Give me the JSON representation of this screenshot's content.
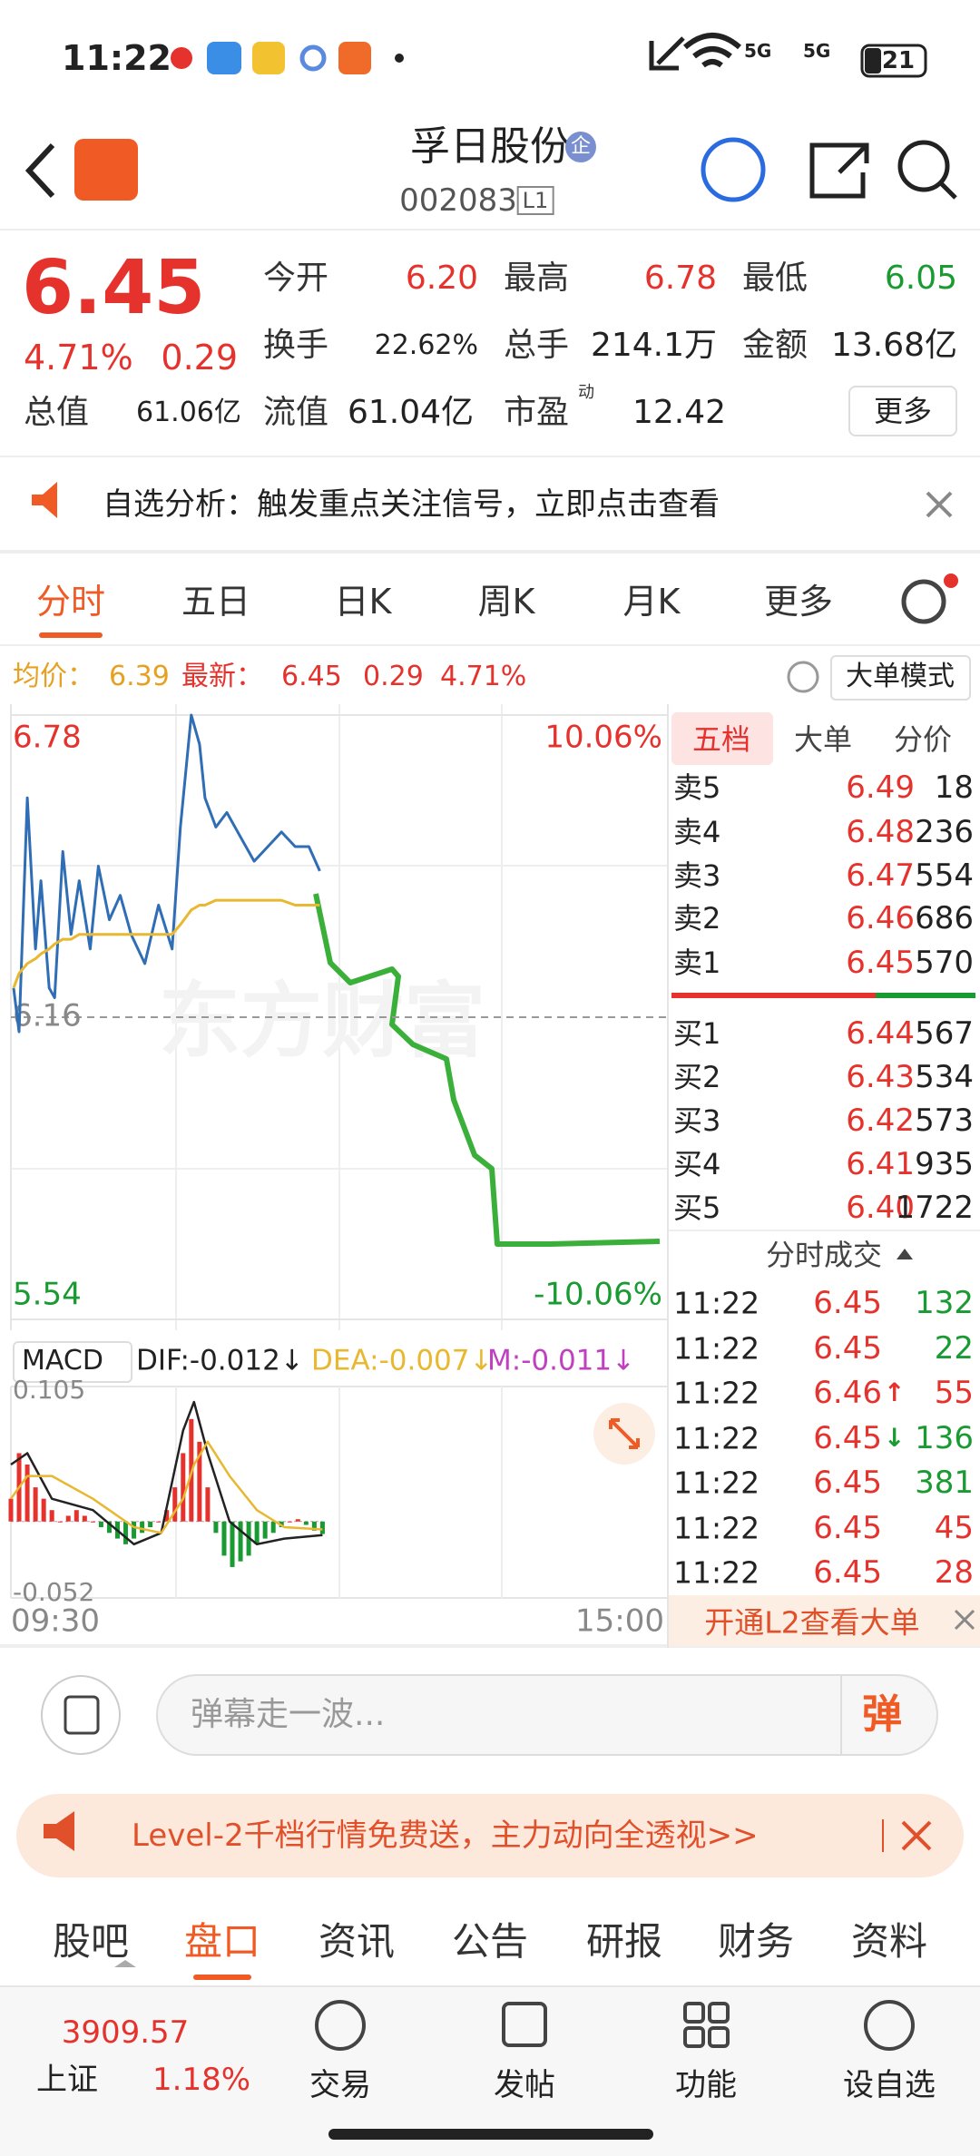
{
  "status_bar": {
    "time": "11:22",
    "battery": "21",
    "network": [
      "5G",
      "5G"
    ]
  },
  "header": {
    "title": "孚日股份",
    "badge": "企",
    "code": "002083",
    "level": "L1"
  },
  "quote": {
    "price": "6.45",
    "change_pct": "4.71%",
    "change": "0.29",
    "fields": [
      {
        "label": "今开",
        "value": "6.20"
      },
      {
        "label": "最高",
        "value": "6.78"
      },
      {
        "label": "最低",
        "value": "6.05"
      },
      {
        "label": "换手",
        "value": "22.62%"
      },
      {
        "label": "总手",
        "value": "214.1万"
      },
      {
        "label": "金额",
        "value": "13.68亿"
      },
      {
        "label": "总值",
        "value": "61.06亿"
      },
      {
        "label": "流值",
        "value": "61.04亿"
      },
      {
        "label": "市盈",
        "sup": "动",
        "value": "12.42"
      }
    ],
    "more": "更多"
  },
  "notice": {
    "text": "自选分析：触发重点关注信号，立即点击查看"
  },
  "tabs": [
    "分时",
    "五日",
    "日K",
    "周K",
    "月K",
    "更多"
  ],
  "info": {
    "avg_label": "均价：",
    "avg": "6.39",
    "last_label": "最新：",
    "last": "6.45",
    "change": "0.29",
    "change_pct": "4.71%",
    "mode": "大单模式"
  },
  "watermark": "东方财富",
  "macd_header": {
    "name": "MACD",
    "dif": "DIF:-0.012↓",
    "dea": "DEA:-0.007↓",
    "m": "M:-0.011↓"
  },
  "chart_data": [
    {
      "type": "line",
      "x": [
        1,
        3,
        6,
        9,
        11,
        14,
        16,
        19,
        22,
        25,
        29,
        32,
        36,
        40,
        44,
        49,
        54,
        59,
        62,
        66,
        69,
        71,
        75,
        79,
        84,
        89,
        94,
        99,
        104,
        109,
        113
      ],
      "xlim": [
        0,
        240
      ],
      "xticks": [
        {
          "value": 0,
          "label": "09:30"
        },
        {
          "value": 240,
          "label": "15:00"
        }
      ],
      "ylim": [
        5.54,
        6.78
      ],
      "yticks": [
        5.54,
        6.16,
        6.78
      ],
      "y2lim": [
        -10.06,
        10.06
      ],
      "y2ticks": [
        {
          "value": -10.06,
          "label": "-10.06%"
        },
        {
          "value": 10.06,
          "label": "10.06%"
        }
      ],
      "series": [
        {
          "color": "#2f6db5",
          "values": [
            6.22,
            6.13,
            6.61,
            6.3,
            6.44,
            6.22,
            6.2,
            6.5,
            6.33,
            6.44,
            6.3,
            6.47,
            6.36,
            6.41,
            6.33,
            6.27,
            6.39,
            6.3,
            6.55,
            6.78,
            6.72,
            6.61,
            6.55,
            6.58,
            6.53,
            6.48,
            6.51,
            6.54,
            6.51,
            6.51,
            6.46
          ]
        },
        {
          "color": "#e8b830",
          "values": [
            6.22,
            6.25,
            6.27,
            6.28,
            6.29,
            6.3,
            6.31,
            6.32,
            6.32,
            6.33,
            6.33,
            6.33,
            6.33,
            6.33,
            6.33,
            6.33,
            6.33,
            6.33,
            6.35,
            6.38,
            6.39,
            6.39,
            6.4,
            6.4,
            6.4,
            6.4,
            6.4,
            6.4,
            6.39,
            6.39,
            6.39
          ]
        }
      ]
    },
    {
      "type": "bar",
      "x": [
        0,
        3,
        6,
        9,
        12,
        15,
        18,
        21,
        24,
        27,
        30,
        33,
        36,
        39,
        42,
        45,
        48,
        51,
        54,
        57,
        60,
        63,
        66,
        69,
        72,
        75,
        78,
        81,
        84,
        87,
        90,
        93,
        96,
        99,
        102,
        105,
        108,
        111,
        114
      ],
      "values": [
        0.02,
        0.06,
        0.05,
        0.03,
        0.02,
        0.01,
        0.0,
        0.005,
        0.01,
        0.005,
        0.0,
        -0.005,
        -0.01,
        -0.015,
        -0.02,
        -0.015,
        -0.01,
        -0.005,
        0.0,
        0.01,
        0.03,
        0.06,
        0.09,
        0.07,
        0.03,
        -0.01,
        -0.03,
        -0.04,
        -0.035,
        -0.03,
        -0.02,
        -0.015,
        -0.01,
        -0.005,
        0.0,
        0.002,
        -0.003,
        -0.008,
        -0.011
      ],
      "colors": {
        "positive": "#e5322d",
        "negative": "#1a9a32"
      },
      "xlim": [
        0,
        240
      ],
      "ylim": [
        -0.052,
        0.105
      ],
      "yticks": [
        -0.052,
        0.105
      ]
    },
    {
      "type": "line",
      "x": [
        0,
        6,
        15,
        30,
        45,
        55,
        63,
        67,
        72,
        80,
        90,
        100,
        114
      ],
      "xlim": [
        0,
        240
      ],
      "ylim": [
        -0.052,
        0.105
      ],
      "series": [
        {
          "color": "#222222",
          "values": [
            0.05,
            0.06,
            0.02,
            0.01,
            -0.02,
            -0.01,
            0.08,
            0.105,
            0.06,
            0.0,
            -0.02,
            -0.015,
            -0.012
          ]
        },
        {
          "color": "#e8b830",
          "values": [
            0.02,
            0.04,
            0.04,
            0.02,
            -0.005,
            -0.01,
            0.02,
            0.05,
            0.07,
            0.04,
            0.01,
            -0.005,
            -0.007
          ]
        }
      ]
    }
  ],
  "order_book": {
    "tabs": [
      "五档",
      "大单",
      "分价"
    ],
    "asks": [
      {
        "label": "卖5",
        "price": "6.49",
        "volume": "18"
      },
      {
        "label": "卖4",
        "price": "6.48",
        "volume": "236"
      },
      {
        "label": "卖3",
        "price": "6.47",
        "volume": "554"
      },
      {
        "label": "卖2",
        "price": "6.46",
        "volume": "686"
      },
      {
        "label": "卖1",
        "price": "6.45",
        "volume": "570"
      }
    ],
    "bids": [
      {
        "label": "买1",
        "price": "6.44",
        "volume": "567"
      },
      {
        "label": "买2",
        "price": "6.43",
        "volume": "534"
      },
      {
        "label": "买3",
        "price": "6.42",
        "volume": "573"
      },
      {
        "label": "买4",
        "price": "6.41",
        "volume": "935"
      },
      {
        "label": "买5",
        "price": "6.40",
        "volume": "1722"
      }
    ],
    "trades_title": "分时成交",
    "trades": [
      {
        "time": "11:22",
        "price": "6.45",
        "volume": "132"
      },
      {
        "time": "11:22",
        "price": "6.45",
        "volume": "22"
      },
      {
        "time": "11:22",
        "price": "6.46",
        "arrow": "↑",
        "volume": "55"
      },
      {
        "time": "11:22",
        "price": "6.45",
        "arrow": "↓",
        "volume": "136"
      },
      {
        "time": "11:22",
        "price": "6.45",
        "volume": "381"
      },
      {
        "time": "11:22",
        "price": "6.45",
        "volume": "45"
      },
      {
        "time": "11:22",
        "price": "6.45",
        "volume": "28"
      }
    ],
    "l2": "开通L2查看大单"
  },
  "comment": {
    "placeholder": "弹幕走一波...",
    "button": "弹"
  },
  "banner": {
    "text": "Level-2千档行情免费送，主力动向全透视>>"
  },
  "bottom_tabs": [
    "股吧",
    "盘口",
    "资讯",
    "公告",
    "研报",
    "财务",
    "资料"
  ],
  "footer": {
    "index_value": "3909.57",
    "index_name": "上证",
    "index_change": "1.18%",
    "items": [
      "交易",
      "发帖",
      "功能",
      "设自选"
    ]
  }
}
